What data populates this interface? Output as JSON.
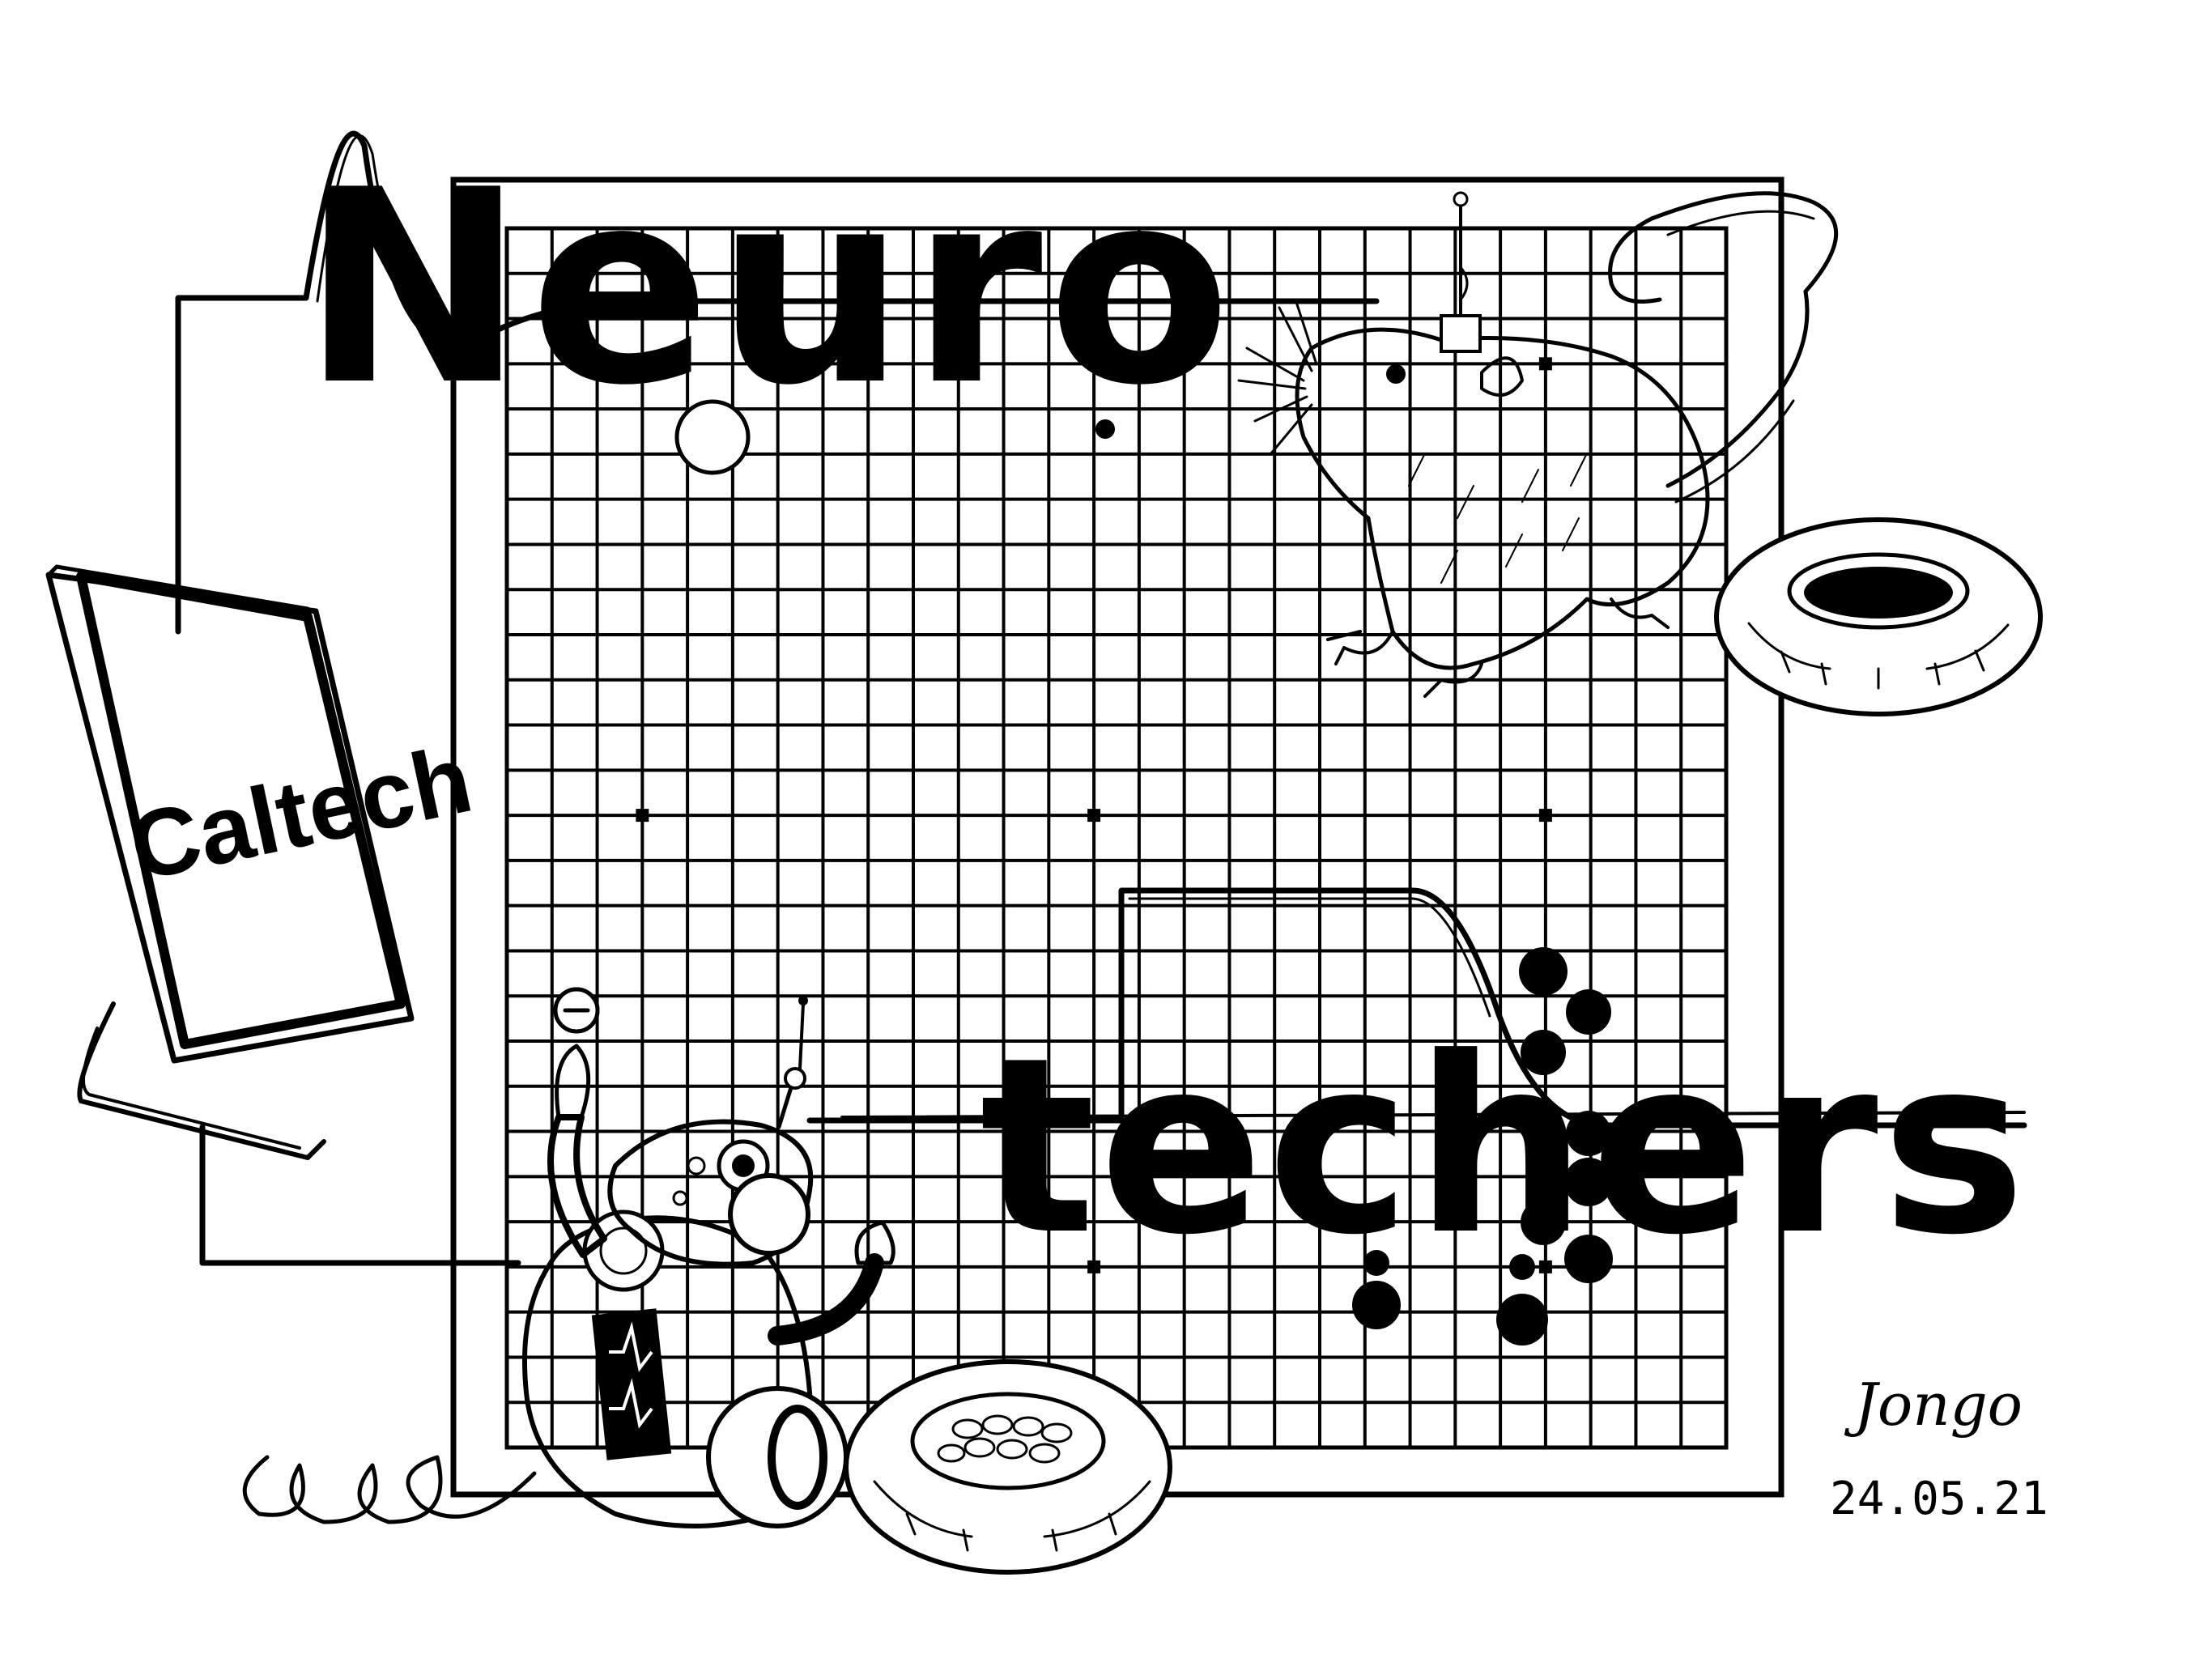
{
  "title": {
    "line1": "Neuro",
    "line2": "techers"
  },
  "monitor": {
    "brand": "Caltech"
  },
  "signature": {
    "name": "Jongo",
    "date": "24.05.21"
  },
  "board": {
    "lines": 28,
    "star_points": [
      [
        3,
        3
      ],
      [
        3,
        13
      ],
      [
        3,
        23
      ],
      [
        13,
        3
      ],
      [
        13,
        13
      ],
      [
        13,
        23
      ],
      [
        23,
        3
      ],
      [
        23,
        13
      ],
      [
        23,
        23
      ]
    ]
  },
  "colors": {
    "ink": "#000000",
    "paper": "#ffffff"
  }
}
